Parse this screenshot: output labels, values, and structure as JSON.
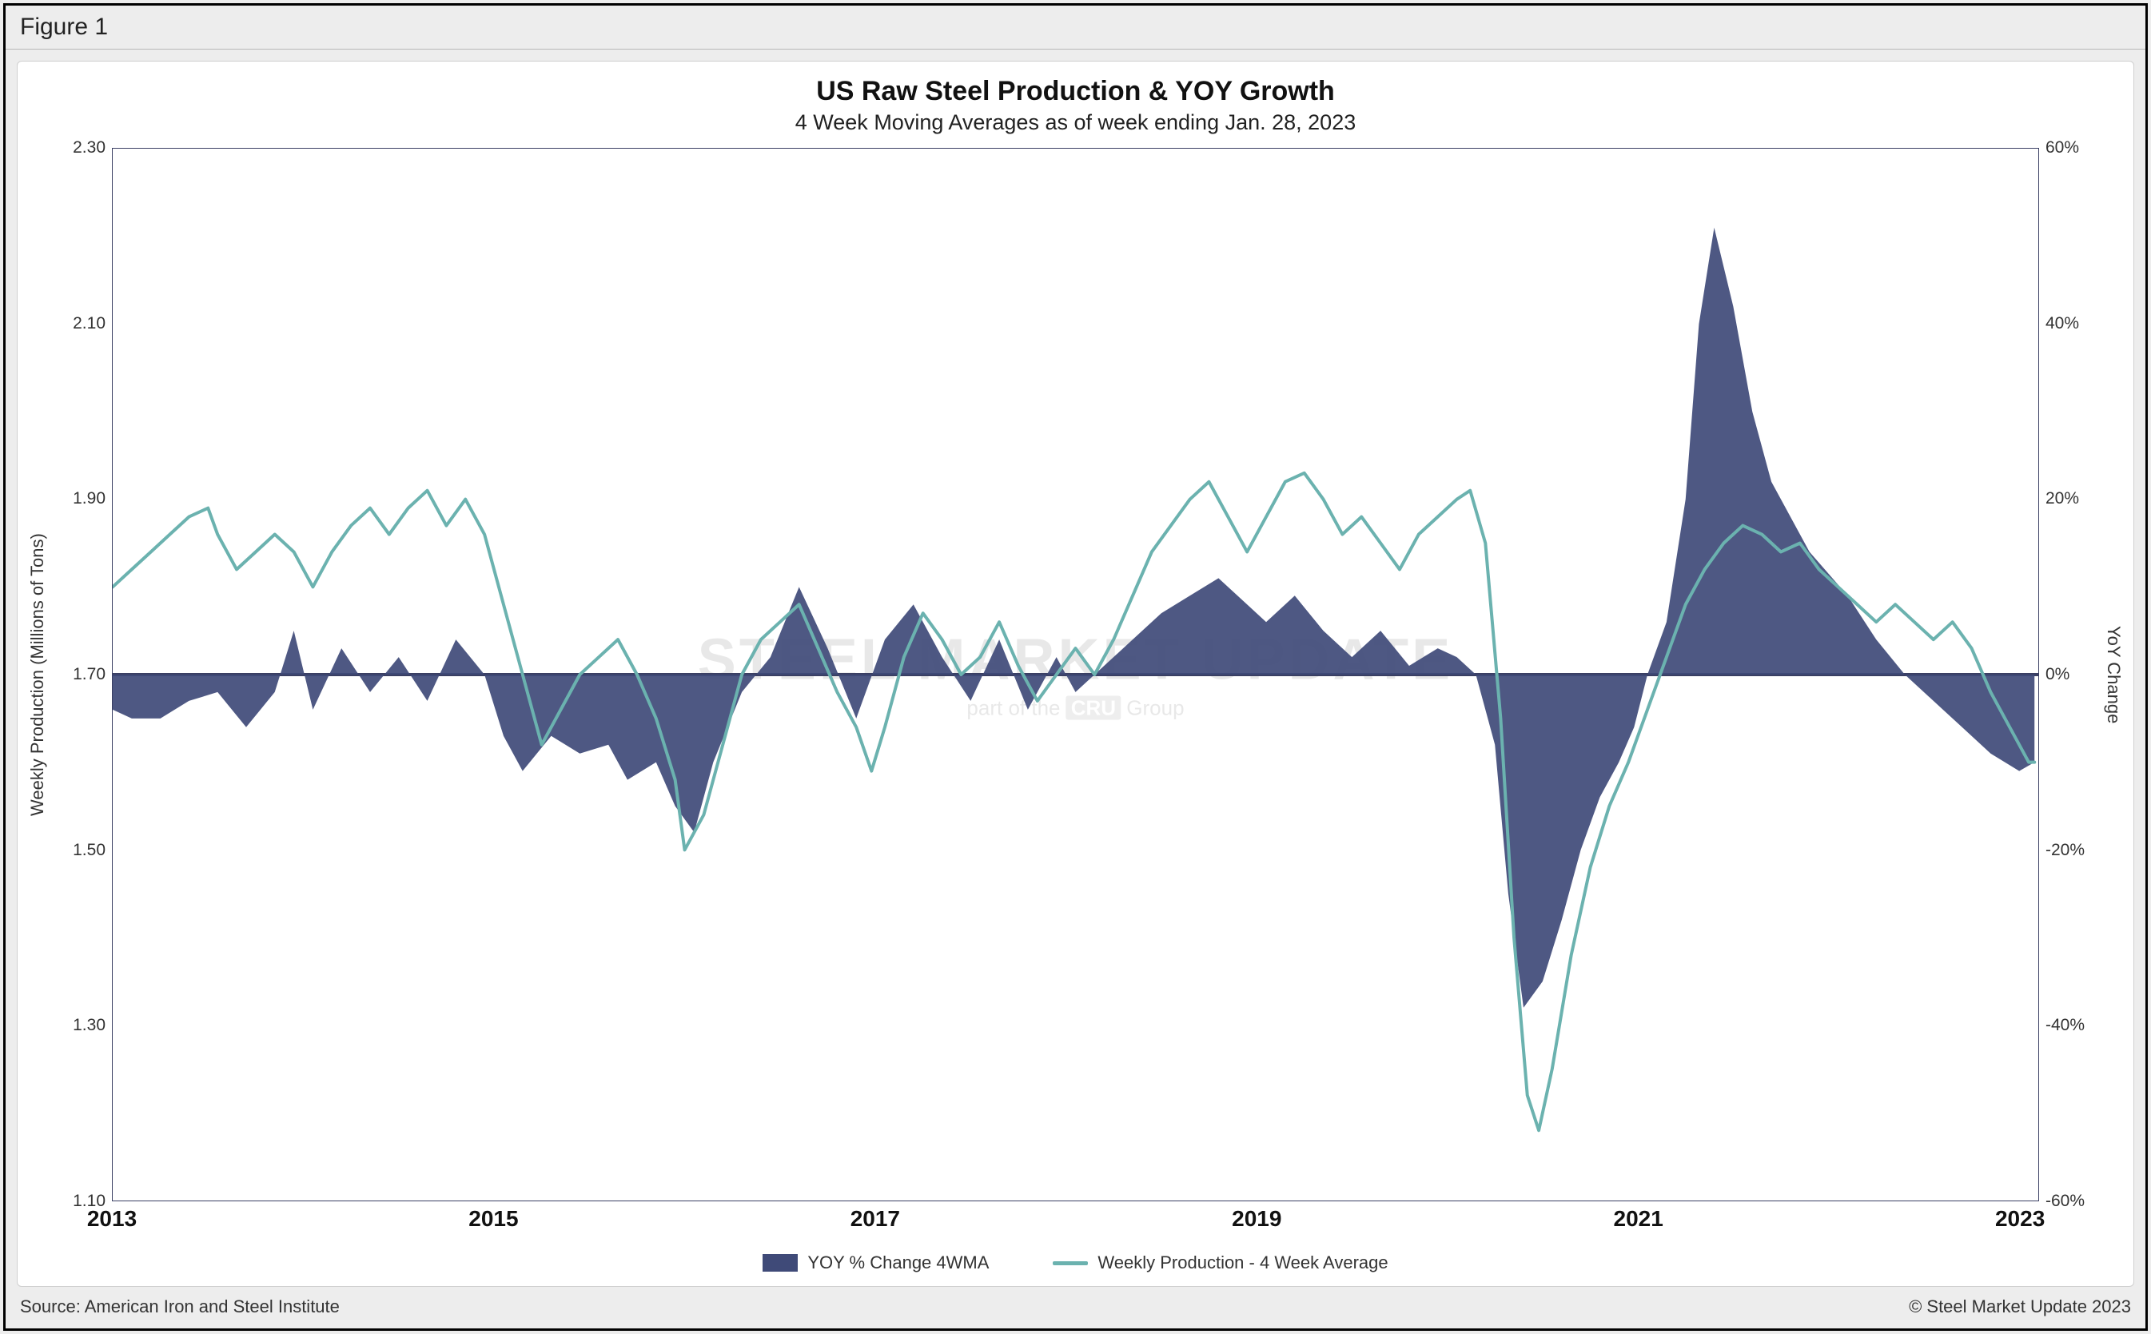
{
  "figure_label": "Figure 1",
  "title": "US Raw Steel Production & YOY Growth",
  "subtitle": "4 Week Moving Averages as of week ending Jan. 28, 2023",
  "source": "Source: American Iron and Steel Institute",
  "copyright": "© Steel Market Update 2023",
  "watermark_main": "STEEL MARKET UPDATE",
  "watermark_sub_prefix": "part of the ",
  "watermark_sub_badge": "CRU",
  "watermark_sub_suffix": " Group",
  "legend": {
    "area": "YOY % Change 4WMA",
    "line": "Weekly Production - 4 Week Average"
  },
  "chart": {
    "type": "dual-axis-line-area",
    "background_color": "#ffffff",
    "panel_background": "#ededed",
    "border_color": "#3a3f63",
    "area_color": "#3f4a78",
    "area_opacity": 0.92,
    "line_color": "#6bb2af",
    "line_width": 4,
    "zero_line_color": "#3a3f63",
    "zero_line_width": 4,
    "title_fontsize": 34,
    "subtitle_fontsize": 27,
    "tick_fontsize": 21,
    "x_tick_fontsize": 28,
    "axis_label_fontsize": 22,
    "x": {
      "min": 2013.0,
      "max": 2023.1,
      "ticks": [
        2013,
        2015,
        2017,
        2019,
        2021,
        2023
      ]
    },
    "y_left": {
      "label": "Weekly Production (Millions of Tons)",
      "min": 1.1,
      "max": 2.3,
      "ticks": [
        1.1,
        1.3,
        1.5,
        1.7,
        1.9,
        2.1,
        2.3
      ],
      "tick_labels": [
        "1.10",
        "1.30",
        "1.50",
        "1.70",
        "1.90",
        "2.10",
        "2.30"
      ]
    },
    "y_right": {
      "label": "YoY Change",
      "min": -60,
      "max": 60,
      "ticks": [
        -60,
        -40,
        -20,
        0,
        20,
        40,
        60
      ],
      "tick_labels": [
        "-60%",
        "-40%",
        "-20%",
        "0%",
        "20%",
        "40%",
        "60%"
      ]
    },
    "yoy_series": [
      [
        2013.0,
        -4
      ],
      [
        2013.1,
        -5
      ],
      [
        2013.25,
        -5
      ],
      [
        2013.4,
        -3
      ],
      [
        2013.55,
        -2
      ],
      [
        2013.7,
        -6
      ],
      [
        2013.85,
        -2
      ],
      [
        2013.95,
        5
      ],
      [
        2014.05,
        -4
      ],
      [
        2014.2,
        3
      ],
      [
        2014.35,
        -2
      ],
      [
        2014.5,
        2
      ],
      [
        2014.65,
        -3
      ],
      [
        2014.8,
        4
      ],
      [
        2014.95,
        0
      ],
      [
        2015.05,
        -7
      ],
      [
        2015.15,
        -11
      ],
      [
        2015.3,
        -7
      ],
      [
        2015.45,
        -9
      ],
      [
        2015.6,
        -8
      ],
      [
        2015.7,
        -12
      ],
      [
        2015.85,
        -10
      ],
      [
        2015.95,
        -15
      ],
      [
        2016.05,
        -18
      ],
      [
        2016.15,
        -10
      ],
      [
        2016.3,
        -2
      ],
      [
        2016.45,
        2
      ],
      [
        2016.6,
        10
      ],
      [
        2016.75,
        3
      ],
      [
        2016.9,
        -5
      ],
      [
        2017.05,
        4
      ],
      [
        2017.2,
        8
      ],
      [
        2017.35,
        2
      ],
      [
        2017.5,
        -3
      ],
      [
        2017.65,
        4
      ],
      [
        2017.8,
        -4
      ],
      [
        2017.95,
        2
      ],
      [
        2018.05,
        -2
      ],
      [
        2018.2,
        1
      ],
      [
        2018.35,
        4
      ],
      [
        2018.5,
        7
      ],
      [
        2018.65,
        9
      ],
      [
        2018.8,
        11
      ],
      [
        2018.95,
        8
      ],
      [
        2019.05,
        6
      ],
      [
        2019.2,
        9
      ],
      [
        2019.35,
        5
      ],
      [
        2019.5,
        2
      ],
      [
        2019.65,
        5
      ],
      [
        2019.8,
        1
      ],
      [
        2019.95,
        3
      ],
      [
        2020.05,
        2
      ],
      [
        2020.15,
        0
      ],
      [
        2020.25,
        -8
      ],
      [
        2020.32,
        -25
      ],
      [
        2020.4,
        -38
      ],
      [
        2020.5,
        -35
      ],
      [
        2020.6,
        -28
      ],
      [
        2020.7,
        -20
      ],
      [
        2020.8,
        -14
      ],
      [
        2020.9,
        -10
      ],
      [
        2020.98,
        -6
      ],
      [
        2021.05,
        0
      ],
      [
        2021.15,
        6
      ],
      [
        2021.25,
        20
      ],
      [
        2021.32,
        40
      ],
      [
        2021.4,
        51
      ],
      [
        2021.5,
        42
      ],
      [
        2021.6,
        30
      ],
      [
        2021.7,
        22
      ],
      [
        2021.8,
        18
      ],
      [
        2021.9,
        14
      ],
      [
        2021.98,
        12
      ],
      [
        2022.1,
        9
      ],
      [
        2022.25,
        4
      ],
      [
        2022.4,
        0
      ],
      [
        2022.55,
        -3
      ],
      [
        2022.7,
        -6
      ],
      [
        2022.85,
        -9
      ],
      [
        2023.0,
        -11
      ],
      [
        2023.08,
        -10
      ]
    ],
    "production_series": [
      [
        2013.0,
        1.8
      ],
      [
        2013.1,
        1.82
      ],
      [
        2013.2,
        1.84
      ],
      [
        2013.3,
        1.86
      ],
      [
        2013.4,
        1.88
      ],
      [
        2013.5,
        1.89
      ],
      [
        2013.55,
        1.86
      ],
      [
        2013.65,
        1.82
      ],
      [
        2013.75,
        1.84
      ],
      [
        2013.85,
        1.86
      ],
      [
        2013.95,
        1.84
      ],
      [
        2014.05,
        1.8
      ],
      [
        2014.15,
        1.84
      ],
      [
        2014.25,
        1.87
      ],
      [
        2014.35,
        1.89
      ],
      [
        2014.45,
        1.86
      ],
      [
        2014.55,
        1.89
      ],
      [
        2014.65,
        1.91
      ],
      [
        2014.75,
        1.87
      ],
      [
        2014.85,
        1.9
      ],
      [
        2014.95,
        1.86
      ],
      [
        2015.05,
        1.78
      ],
      [
        2015.15,
        1.7
      ],
      [
        2015.25,
        1.62
      ],
      [
        2015.35,
        1.66
      ],
      [
        2015.45,
        1.7
      ],
      [
        2015.55,
        1.72
      ],
      [
        2015.65,
        1.74
      ],
      [
        2015.75,
        1.7
      ],
      [
        2015.85,
        1.65
      ],
      [
        2015.95,
        1.58
      ],
      [
        2016.0,
        1.5
      ],
      [
        2016.1,
        1.54
      ],
      [
        2016.2,
        1.62
      ],
      [
        2016.3,
        1.7
      ],
      [
        2016.4,
        1.74
      ],
      [
        2016.5,
        1.76
      ],
      [
        2016.6,
        1.78
      ],
      [
        2016.7,
        1.73
      ],
      [
        2016.8,
        1.68
      ],
      [
        2016.9,
        1.64
      ],
      [
        2016.98,
        1.59
      ],
      [
        2017.05,
        1.64
      ],
      [
        2017.15,
        1.72
      ],
      [
        2017.25,
        1.77
      ],
      [
        2017.35,
        1.74
      ],
      [
        2017.45,
        1.7
      ],
      [
        2017.55,
        1.72
      ],
      [
        2017.65,
        1.76
      ],
      [
        2017.75,
        1.71
      ],
      [
        2017.85,
        1.67
      ],
      [
        2017.95,
        1.7
      ],
      [
        2018.05,
        1.73
      ],
      [
        2018.15,
        1.7
      ],
      [
        2018.25,
        1.74
      ],
      [
        2018.35,
        1.79
      ],
      [
        2018.45,
        1.84
      ],
      [
        2018.55,
        1.87
      ],
      [
        2018.65,
        1.9
      ],
      [
        2018.75,
        1.92
      ],
      [
        2018.85,
        1.88
      ],
      [
        2018.95,
        1.84
      ],
      [
        2019.05,
        1.88
      ],
      [
        2019.15,
        1.92
      ],
      [
        2019.25,
        1.93
      ],
      [
        2019.35,
        1.9
      ],
      [
        2019.45,
        1.86
      ],
      [
        2019.55,
        1.88
      ],
      [
        2019.65,
        1.85
      ],
      [
        2019.75,
        1.82
      ],
      [
        2019.85,
        1.86
      ],
      [
        2019.95,
        1.88
      ],
      [
        2020.05,
        1.9
      ],
      [
        2020.12,
        1.91
      ],
      [
        2020.2,
        1.85
      ],
      [
        2020.28,
        1.65
      ],
      [
        2020.35,
        1.4
      ],
      [
        2020.42,
        1.22
      ],
      [
        2020.48,
        1.18
      ],
      [
        2020.55,
        1.25
      ],
      [
        2020.65,
        1.38
      ],
      [
        2020.75,
        1.48
      ],
      [
        2020.85,
        1.55
      ],
      [
        2020.95,
        1.6
      ],
      [
        2021.05,
        1.66
      ],
      [
        2021.15,
        1.72
      ],
      [
        2021.25,
        1.78
      ],
      [
        2021.35,
        1.82
      ],
      [
        2021.45,
        1.85
      ],
      [
        2021.55,
        1.87
      ],
      [
        2021.65,
        1.86
      ],
      [
        2021.75,
        1.84
      ],
      [
        2021.85,
        1.85
      ],
      [
        2021.95,
        1.82
      ],
      [
        2022.05,
        1.8
      ],
      [
        2022.15,
        1.78
      ],
      [
        2022.25,
        1.76
      ],
      [
        2022.35,
        1.78
      ],
      [
        2022.45,
        1.76
      ],
      [
        2022.55,
        1.74
      ],
      [
        2022.65,
        1.76
      ],
      [
        2022.75,
        1.73
      ],
      [
        2022.85,
        1.68
      ],
      [
        2022.95,
        1.64
      ],
      [
        2023.05,
        1.6
      ],
      [
        2023.08,
        1.6
      ]
    ]
  }
}
